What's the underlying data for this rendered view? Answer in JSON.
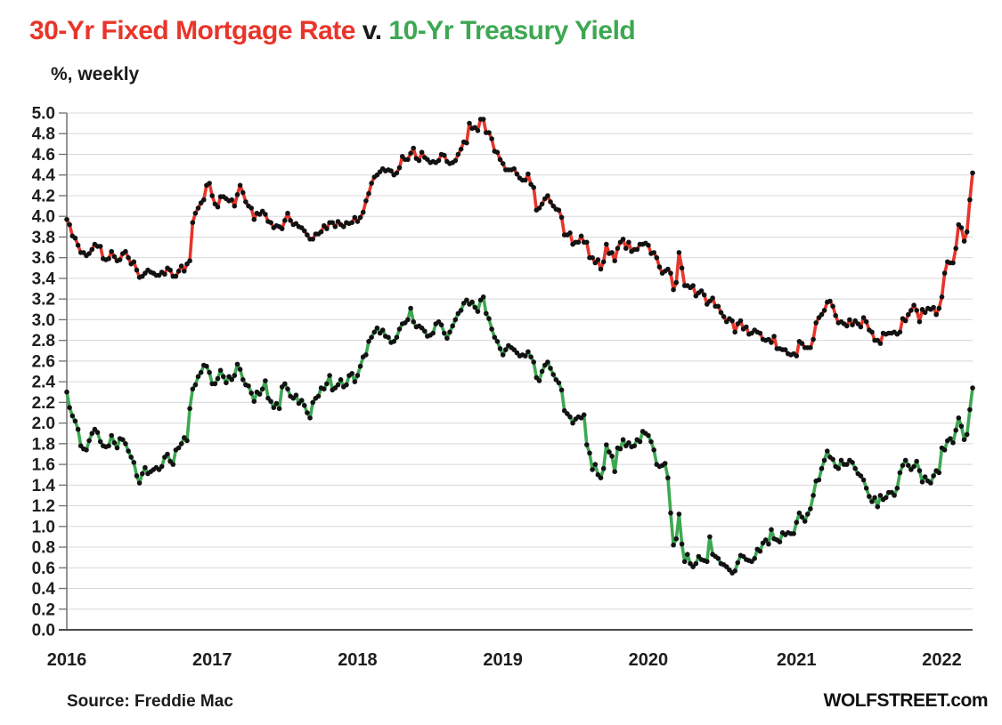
{
  "title": {
    "part1": "30-Yr Fixed Mortgage Rate",
    "separator": " v. ",
    "part2": "10-Yr Treasury Yield"
  },
  "subtitle": "%, weekly",
  "footer": {
    "source": "Source: Freddie Mac",
    "brand": "WOLFSTREET.com"
  },
  "colors": {
    "mortgage": "#e8352a",
    "treasury": "#3da852",
    "marker": "#121212",
    "gridline": "#d8d8d8",
    "axis": "#707070",
    "baseline": "#4a4a4a",
    "tick_label": "#1e1e1e"
  },
  "chart_data": {
    "type": "line",
    "title": "30-Yr Fixed Mortgage Rate v. 10-Yr Treasury Yield",
    "subtitle": "%, weekly",
    "frequency": "weekly",
    "x_range": [
      "2016-01",
      "2022-03"
    ],
    "year_labels": [
      "2016",
      "2017",
      "2018",
      "2019",
      "2020",
      "2021",
      "2022"
    ],
    "weeks_per_year": [
      52,
      52,
      52,
      52,
      53,
      52,
      12
    ],
    "ylim": [
      0,
      5
    ],
    "ytick_step": 0.2,
    "grid": "horizontal",
    "legend": "colored-title",
    "series": [
      {
        "name": "30-Yr Fixed Mortgage Rate",
        "color_key": "mortgage",
        "values": [
          3.97,
          3.92,
          3.81,
          3.79,
          3.72,
          3.65,
          3.65,
          3.62,
          3.64,
          3.68,
          3.73,
          3.71,
          3.71,
          3.59,
          3.58,
          3.59,
          3.66,
          3.61,
          3.57,
          3.58,
          3.64,
          3.66,
          3.6,
          3.54,
          3.56,
          3.48,
          3.41,
          3.42,
          3.45,
          3.48,
          3.46,
          3.45,
          3.43,
          3.43,
          3.46,
          3.44,
          3.5,
          3.48,
          3.42,
          3.42,
          3.47,
          3.52,
          3.47,
          3.54,
          3.57,
          3.94,
          4.03,
          4.08,
          4.13,
          4.16,
          4.3,
          4.32,
          4.2,
          4.12,
          4.09,
          4.19,
          4.19,
          4.17,
          4.15,
          4.16,
          4.1,
          4.21,
          4.3,
          4.23,
          4.14,
          4.1,
          4.08,
          3.97,
          4.03,
          4.02,
          4.05,
          4.02,
          3.95,
          3.94,
          3.89,
          3.91,
          3.9,
          3.88,
          3.96,
          4.03,
          3.96,
          3.92,
          3.93,
          3.9,
          3.89,
          3.86,
          3.82,
          3.78,
          3.78,
          3.83,
          3.83,
          3.85,
          3.91,
          3.88,
          3.94,
          3.94,
          3.9,
          3.95,
          3.92,
          3.9,
          3.94,
          3.93,
          3.94,
          3.99,
          3.95,
          3.99,
          4.04,
          4.15,
          4.22,
          4.32,
          4.38,
          4.4,
          4.43,
          4.46,
          4.44,
          4.45,
          4.44,
          4.4,
          4.42,
          4.47,
          4.58,
          4.55,
          4.55,
          4.61,
          4.66,
          4.56,
          4.54,
          4.62,
          4.57,
          4.55,
          4.52,
          4.53,
          4.52,
          4.54,
          4.6,
          4.59,
          4.53,
          4.51,
          4.52,
          4.54,
          4.6,
          4.65,
          4.72,
          4.71,
          4.9,
          4.85,
          4.86,
          4.83,
          4.94,
          4.94,
          4.81,
          4.81,
          4.75,
          4.63,
          4.62,
          4.55,
          4.51,
          4.45,
          4.45,
          4.45,
          4.46,
          4.41,
          4.37,
          4.35,
          4.35,
          4.41,
          4.31,
          4.28,
          4.06,
          4.08,
          4.12,
          4.17,
          4.2,
          4.14,
          4.1,
          4.07,
          4.06,
          3.99,
          3.82,
          3.82,
          3.84,
          3.73,
          3.75,
          3.75,
          3.81,
          3.75,
          3.75,
          3.6,
          3.6,
          3.55,
          3.58,
          3.49,
          3.56,
          3.73,
          3.64,
          3.65,
          3.57,
          3.69,
          3.75,
          3.78,
          3.69,
          3.75,
          3.66,
          3.68,
          3.68,
          3.73,
          3.73,
          3.74,
          3.72,
          3.64,
          3.65,
          3.6,
          3.51,
          3.45,
          3.47,
          3.49,
          3.45,
          3.29,
          3.36,
          3.65,
          3.5,
          3.33,
          3.33,
          3.31,
          3.33,
          3.23,
          3.26,
          3.28,
          3.24,
          3.15,
          3.18,
          3.21,
          3.13,
          3.13,
          3.07,
          3.03,
          2.98,
          3.01,
          2.99,
          2.88,
          2.96,
          2.99,
          2.91,
          2.93,
          2.86,
          2.87,
          2.9,
          2.88,
          2.87,
          2.81,
          2.8,
          2.81,
          2.78,
          2.84,
          2.72,
          2.72,
          2.71,
          2.71,
          2.67,
          2.66,
          2.67,
          2.65,
          2.79,
          2.77,
          2.73,
          2.73,
          2.73,
          2.81,
          2.97,
          3.02,
          3.05,
          3.09,
          3.17,
          3.18,
          3.13,
          3.04,
          2.97,
          2.98,
          2.96,
          2.94,
          3.0,
          2.95,
          2.99,
          2.96,
          2.93,
          3.02,
          2.98,
          2.9,
          2.88,
          2.8,
          2.8,
          2.77,
          2.87,
          2.86,
          2.87,
          2.87,
          2.88,
          2.86,
          2.88,
          3.01,
          2.99,
          3.05,
          3.09,
          3.14,
          3.09,
          2.98,
          3.1,
          3.07,
          3.11,
          3.1,
          3.12,
          3.05,
          3.11,
          3.22,
          3.45,
          3.56,
          3.55,
          3.55,
          3.69,
          3.92,
          3.89,
          3.76,
          3.85,
          4.16,
          4.42
        ]
      },
      {
        "name": "10-Yr Treasury Yield",
        "color_key": "treasury",
        "values": [
          2.3,
          2.15,
          2.07,
          2.02,
          1.94,
          1.78,
          1.75,
          1.74,
          1.83,
          1.9,
          1.94,
          1.91,
          1.82,
          1.78,
          1.77,
          1.78,
          1.88,
          1.81,
          1.76,
          1.85,
          1.84,
          1.8,
          1.73,
          1.67,
          1.62,
          1.49,
          1.42,
          1.51,
          1.57,
          1.51,
          1.53,
          1.55,
          1.57,
          1.55,
          1.58,
          1.67,
          1.7,
          1.63,
          1.6,
          1.74,
          1.76,
          1.8,
          1.86,
          1.83,
          2.14,
          2.33,
          2.37,
          2.45,
          2.49,
          2.56,
          2.55,
          2.49,
          2.38,
          2.38,
          2.43,
          2.51,
          2.45,
          2.39,
          2.45,
          2.42,
          2.46,
          2.57,
          2.52,
          2.42,
          2.37,
          2.36,
          2.29,
          2.21,
          2.3,
          2.28,
          2.33,
          2.41,
          2.24,
          2.21,
          2.15,
          2.19,
          2.14,
          2.35,
          2.38,
          2.33,
          2.26,
          2.24,
          2.27,
          2.19,
          2.22,
          2.17,
          2.1,
          2.05,
          2.2,
          2.24,
          2.26,
          2.34,
          2.33,
          2.38,
          2.46,
          2.32,
          2.34,
          2.37,
          2.42,
          2.35,
          2.37,
          2.46,
          2.48,
          2.4,
          2.46,
          2.55,
          2.64,
          2.66,
          2.79,
          2.83,
          2.88,
          2.92,
          2.87,
          2.9,
          2.84,
          2.83,
          2.78,
          2.79,
          2.83,
          2.91,
          2.96,
          2.97,
          3.0,
          3.11,
          2.98,
          2.93,
          2.94,
          2.92,
          2.89,
          2.84,
          2.85,
          2.87,
          2.96,
          2.98,
          2.95,
          2.87,
          2.82,
          2.88,
          2.94,
          3.0,
          3.06,
          3.09,
          3.16,
          3.19,
          3.15,
          3.17,
          3.12,
          3.08,
          3.19,
          3.22,
          3.06,
          3.01,
          2.91,
          2.83,
          2.79,
          2.72,
          2.66,
          2.71,
          2.75,
          2.73,
          2.71,
          2.68,
          2.65,
          2.66,
          2.65,
          2.69,
          2.64,
          2.59,
          2.44,
          2.41,
          2.5,
          2.56,
          2.59,
          2.53,
          2.47,
          2.42,
          2.39,
          2.32,
          2.12,
          2.09,
          2.06,
          2.0,
          2.04,
          2.06,
          2.05,
          2.08,
          1.79,
          1.71,
          1.55,
          1.6,
          1.5,
          1.47,
          1.56,
          1.79,
          1.72,
          1.68,
          1.53,
          1.76,
          1.75,
          1.84,
          1.78,
          1.81,
          1.77,
          1.78,
          1.84,
          1.82,
          1.92,
          1.9,
          1.88,
          1.82,
          1.74,
          1.6,
          1.58,
          1.59,
          1.61,
          1.47,
          1.13,
          0.82,
          0.88,
          1.12,
          0.83,
          0.66,
          0.73,
          0.64,
          0.61,
          0.64,
          0.71,
          0.68,
          0.67,
          0.66,
          0.9,
          0.73,
          0.71,
          0.69,
          0.64,
          0.63,
          0.61,
          0.58,
          0.55,
          0.57,
          0.65,
          0.72,
          0.71,
          0.68,
          0.67,
          0.66,
          0.69,
          0.78,
          0.76,
          0.84,
          0.87,
          0.83,
          0.97,
          0.88,
          0.87,
          0.85,
          0.94,
          0.92,
          0.94,
          0.93,
          0.93,
          1.04,
          1.13,
          1.09,
          1.05,
          1.12,
          1.17,
          1.3,
          1.44,
          1.45,
          1.56,
          1.64,
          1.73,
          1.67,
          1.65,
          1.58,
          1.56,
          1.64,
          1.6,
          1.6,
          1.64,
          1.62,
          1.56,
          1.51,
          1.49,
          1.45,
          1.37,
          1.29,
          1.24,
          1.28,
          1.19,
          1.3,
          1.26,
          1.28,
          1.33,
          1.33,
          1.3,
          1.37,
          1.52,
          1.59,
          1.64,
          1.59,
          1.55,
          1.58,
          1.63,
          1.54,
          1.43,
          1.48,
          1.44,
          1.42,
          1.49,
          1.54,
          1.52,
          1.76,
          1.74,
          1.83,
          1.85,
          1.81,
          1.93,
          2.05,
          1.97,
          1.84,
          1.89,
          2.13,
          2.34
        ]
      }
    ]
  }
}
